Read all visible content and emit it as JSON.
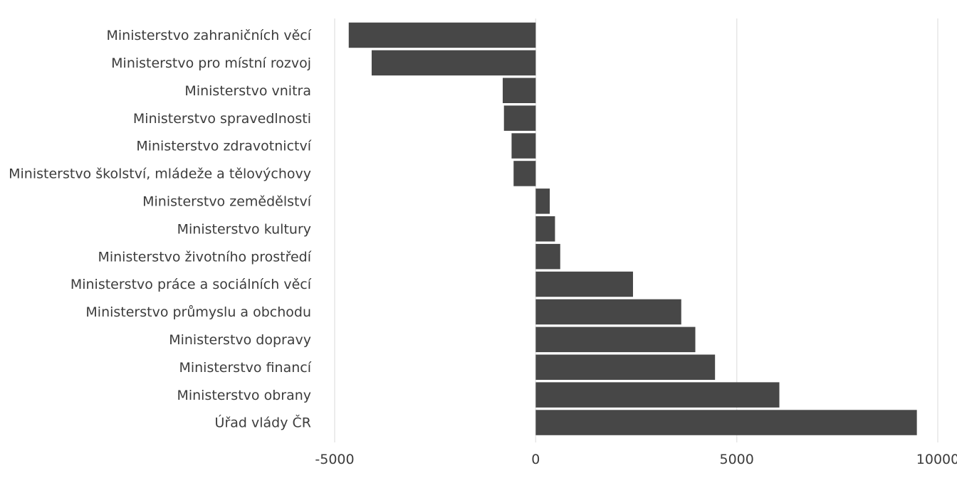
{
  "chart_data": {
    "type": "bar",
    "orientation": "horizontal",
    "title": "",
    "xlabel": "",
    "ylabel": "",
    "categories": [
      "Ministerstvo zahraničních věcí",
      "Ministerstvo pro místní rozvoj",
      "Ministerstvo vnitra",
      "Ministerstvo spravedlnosti",
      "Ministerstvo zdravotnictví",
      "Ministerstvo školství, mládeže a tělovýchovy",
      "Ministerstvo zemědělství",
      "Ministerstvo kultury",
      "Ministerstvo životního prostředí",
      "Ministerstvo práce a sociálních věcí",
      "Ministerstvo průmyslu a obchodu",
      "Ministerstvo dopravy",
      "Ministerstvo financí",
      "Ministerstvo obrany",
      "Úřad vlády ČR"
    ],
    "values": [
      -4650,
      -4080,
      -820,
      -790,
      -600,
      -550,
      350,
      480,
      610,
      2420,
      3620,
      3970,
      4460,
      6060,
      9480
    ],
    "xlim": [
      -5000,
      10000
    ],
    "xticks": [
      -5000,
      0,
      5000,
      10000
    ],
    "xtick_labels": [
      "-5000",
      "0",
      "5000",
      "10000"
    ],
    "grid": true,
    "legend": "none",
    "bar_color": "#474747",
    "grid_color": "#e6e6e6",
    "label_color": "#3c3c3c"
  }
}
